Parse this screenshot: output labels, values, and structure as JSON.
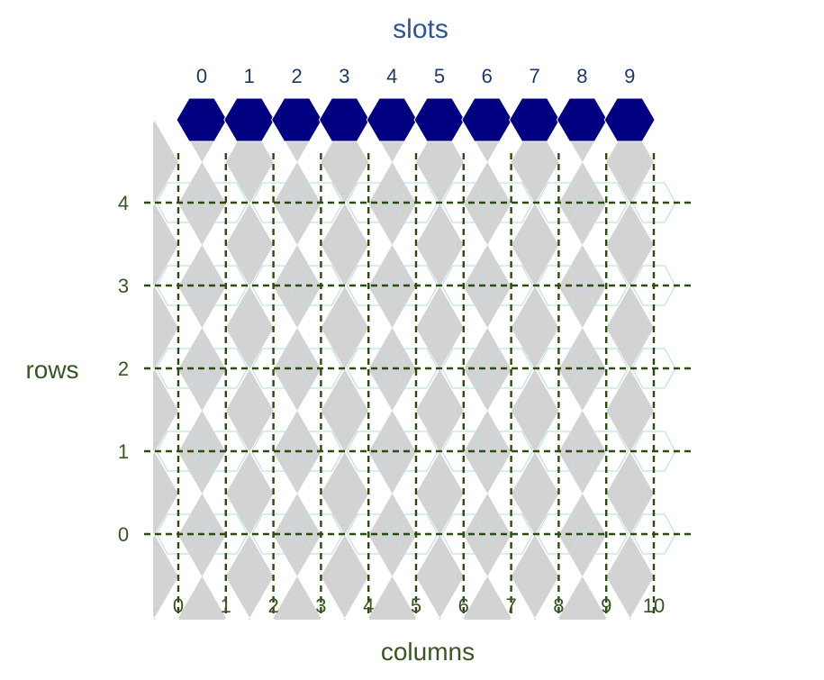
{
  "title": "slots",
  "x_axis_label": "columns",
  "y_axis_label": "rows",
  "slot_labels": [
    "0",
    "1",
    "2",
    "3",
    "4",
    "5",
    "6",
    "7",
    "8",
    "9"
  ],
  "column_labels": [
    "0",
    "1",
    "2",
    "3",
    "4",
    "5",
    "6",
    "7",
    "8",
    "9",
    "10"
  ],
  "row_labels": [
    "0",
    "1",
    "2",
    "3",
    "4"
  ],
  "colors": {
    "title": "#2F5597",
    "slot_label": "#1F3864",
    "slot_hex": "#000080",
    "axis_label": "#375623",
    "grid_line": "#2D4A14",
    "diamond": "#D3D3D3",
    "hex_outline": "#BFE0EC"
  }
}
